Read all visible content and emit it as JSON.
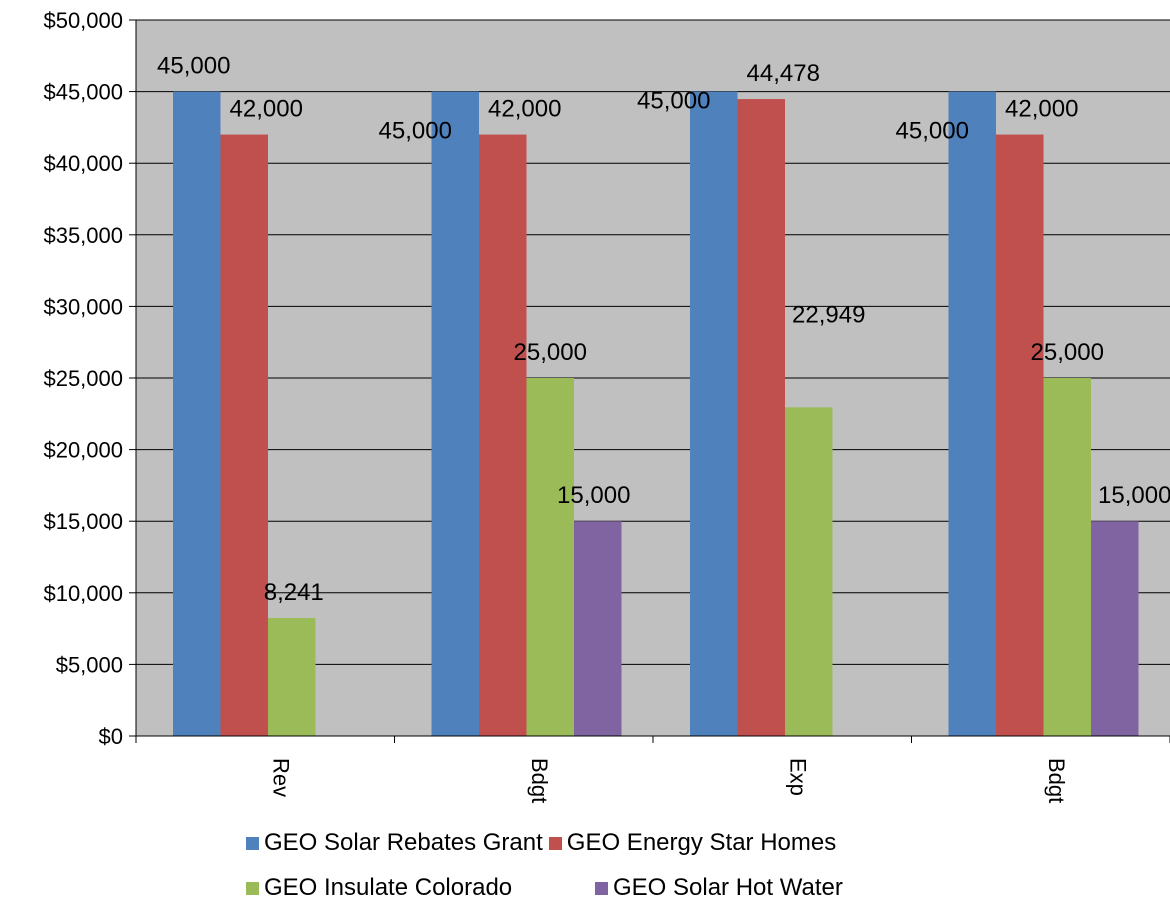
{
  "chart_data": {
    "type": "bar",
    "categories": [
      "Rev",
      "Bdgt",
      "Exp",
      "Bdgt"
    ],
    "series": [
      {
        "name": "GEO Solar Rebates Grant",
        "color": "#4F81BD",
        "values": [
          45000,
          45000,
          45000,
          45000
        ],
        "labels": [
          "45,000",
          "45,000",
          "45,000",
          "45,000"
        ]
      },
      {
        "name": "GEO Energy Star Homes",
        "color": "#C0504D",
        "values": [
          42000,
          42000,
          44478,
          42000
        ],
        "labels": [
          "42,000",
          "42,000",
          "44,478",
          "42,000"
        ]
      },
      {
        "name": "GEO Insulate Colorado",
        "color": "#9BBB59",
        "values": [
          8241,
          25000,
          22949,
          25000
        ],
        "labels": [
          "8,241",
          "25,000",
          "22,949",
          "25,000"
        ]
      },
      {
        "name": "GEO Solar Hot Water",
        "color": "#8064A2",
        "values": [
          0,
          15000,
          0,
          15000
        ],
        "labels": [
          "",
          "15,000",
          "",
          "15,000"
        ]
      }
    ],
    "ylim": [
      0,
      50000
    ],
    "yticks": [
      0,
      5000,
      10000,
      15000,
      20000,
      25000,
      30000,
      35000,
      40000,
      45000,
      50000
    ],
    "ytick_labels": [
      "$0",
      "$5,000",
      "$10,000",
      "$15,000",
      "$20,000",
      "$25,000",
      "$30,000",
      "$35,000",
      "$40,000",
      "$45,000",
      "$50,000"
    ],
    "xlabel": "",
    "ylabel": "",
    "plot_background": "#C0C0C0",
    "grid": true,
    "legend_position": "bottom"
  }
}
